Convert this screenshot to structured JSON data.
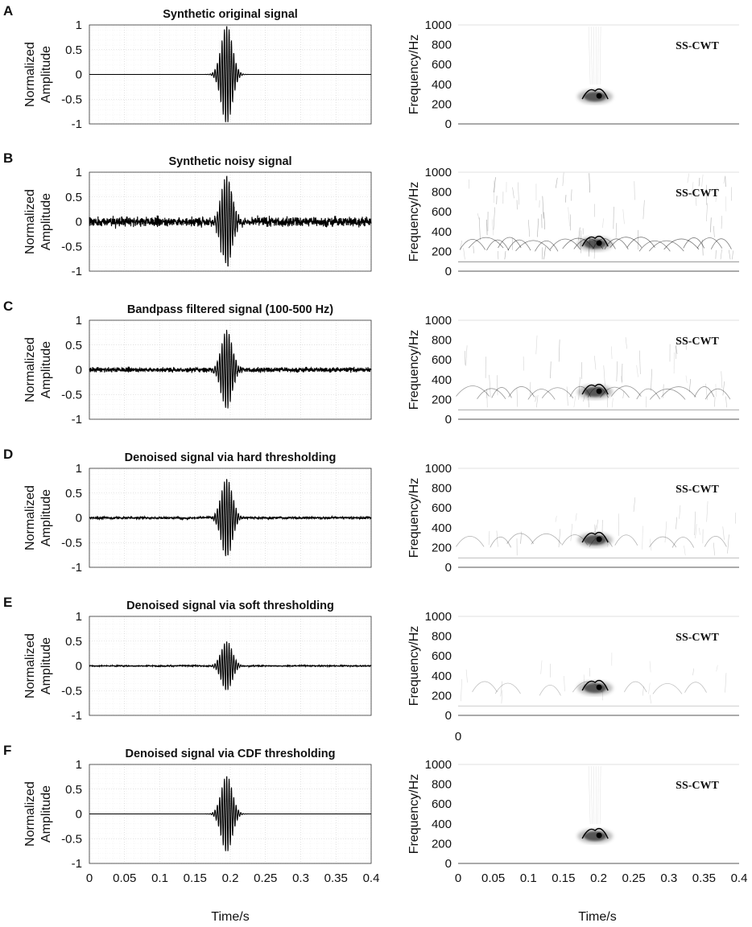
{
  "chart_data": {
    "type": "line",
    "time_axis": {
      "label": "Time/s",
      "ticks": [
        "0",
        "0.05",
        "0.1",
        "0.15",
        "0.2",
        "0.25",
        "0.3",
        "0.35",
        "0.4"
      ],
      "range": [
        0,
        0.4
      ]
    },
    "amplitude_axis": {
      "label_line1": "Normalized",
      "label_line2": "Amplitude",
      "ticks": [
        "1",
        "0.5",
        "0",
        "-0.5",
        "-1"
      ],
      "range": [
        -1,
        1
      ]
    },
    "frequency_axis": {
      "label": "Frequency/Hz",
      "ticks": [
        "1000",
        "800",
        "600",
        "400",
        "200",
        "0"
      ],
      "range": [
        0,
        1000
      ]
    },
    "tf_label": "SS-CWT",
    "extra_zero_label": "0",
    "burst_center_s": 0.195,
    "tf_hotspot": {
      "time_s": 0.195,
      "freq_hz": 300
    },
    "panels": [
      {
        "letter": "A",
        "title": "Synthetic original signal",
        "peak_amplitude": 1.0,
        "noise_level": 0.0,
        "residual_smooth": 0.0,
        "tf_background": "clean"
      },
      {
        "letter": "B",
        "title": "Synthetic noisy signal",
        "peak_amplitude": 0.9,
        "noise_level": 0.1,
        "residual_smooth": 0.0,
        "tf_background": "heavy"
      },
      {
        "letter": "C",
        "title": "Bandpass filtered signal (100-500 Hz)",
        "peak_amplitude": 0.8,
        "noise_level": 0.05,
        "residual_smooth": 0.0,
        "tf_background": "medium"
      },
      {
        "letter": "D",
        "title": "Denoised signal via hard thresholding",
        "peak_amplitude": 0.8,
        "noise_level": 0.02,
        "residual_smooth": 0.02,
        "tf_background": "light"
      },
      {
        "letter": "E",
        "title": "Denoised signal via soft thresholding",
        "peak_amplitude": 0.5,
        "noise_level": 0.01,
        "residual_smooth": 0.01,
        "tf_background": "faint"
      },
      {
        "letter": "F",
        "title": "Denoised signal via CDF thresholding",
        "peak_amplitude": 0.78,
        "noise_level": 0.0,
        "residual_smooth": 0.0,
        "tf_background": "clean"
      }
    ]
  }
}
